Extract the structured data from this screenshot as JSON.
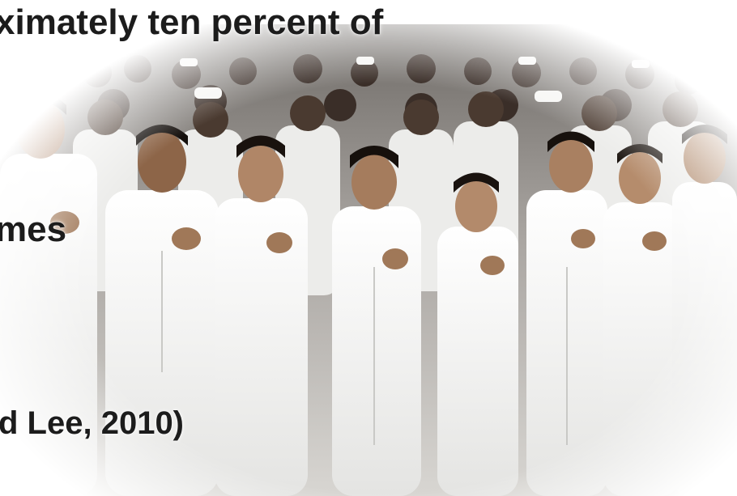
{
  "slide": {
    "text_line_1": "ximately ten percent of",
    "text_line_2": "mes",
    "text_line_3": "d Lee, 2010)"
  },
  "photo": {
    "description_icon": "group-of-nurses-photo-icon",
    "uniform_color": "#f4f4f2",
    "background_color": "#9a9a98"
  }
}
